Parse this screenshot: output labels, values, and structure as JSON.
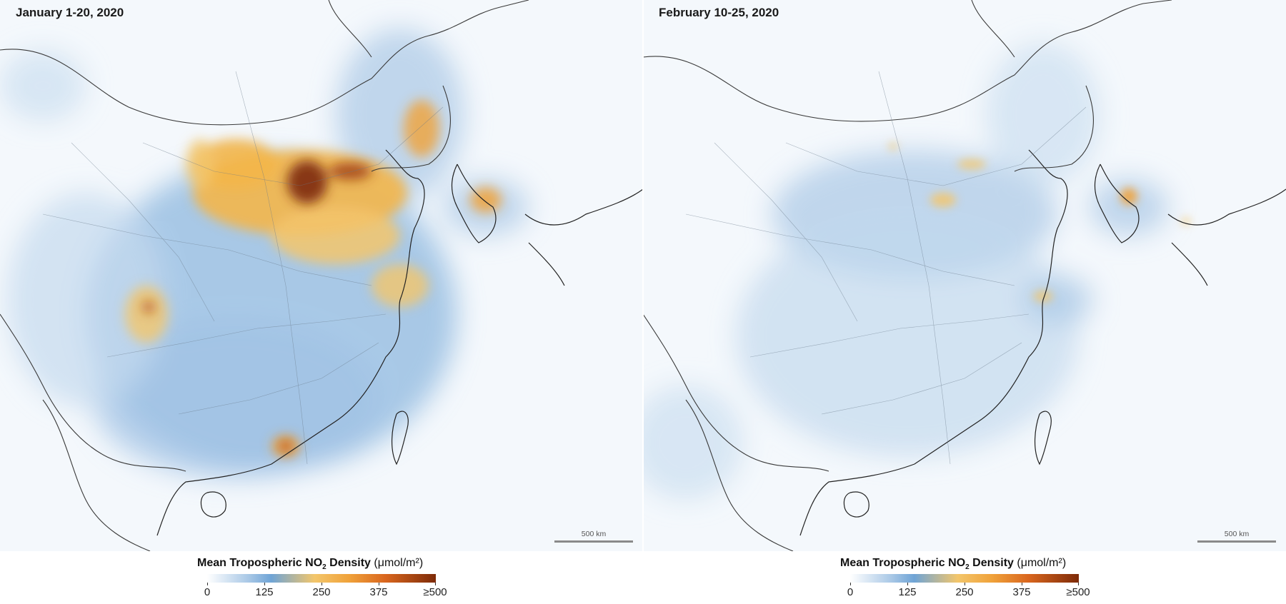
{
  "panels": [
    {
      "title": "January 1-20, 2020",
      "scale_label": "500 km",
      "legend": {
        "title_main": "Mean Tropospheric NO",
        "title_sub": "2",
        "title_rest": " Density",
        "unit": "(μmol/m²)",
        "ticks": [
          "0",
          "125",
          "250",
          "375",
          "≥500"
        ]
      },
      "pollution_level": "high"
    },
    {
      "title": "February 10-25, 2020",
      "scale_label": "500 km",
      "legend": {
        "title_main": "Mean Tropospheric NO",
        "title_sub": "2",
        "title_rest": " Density",
        "unit": "(μmol/m²)",
        "ticks": [
          "0",
          "125",
          "250",
          "375",
          "≥500"
        ]
      },
      "pollution_level": "low"
    }
  ],
  "colors": {
    "low": "#6fa4d6",
    "mid": "#f3c66b",
    "high": "#7d2a08",
    "background": "#f4f8fc"
  }
}
